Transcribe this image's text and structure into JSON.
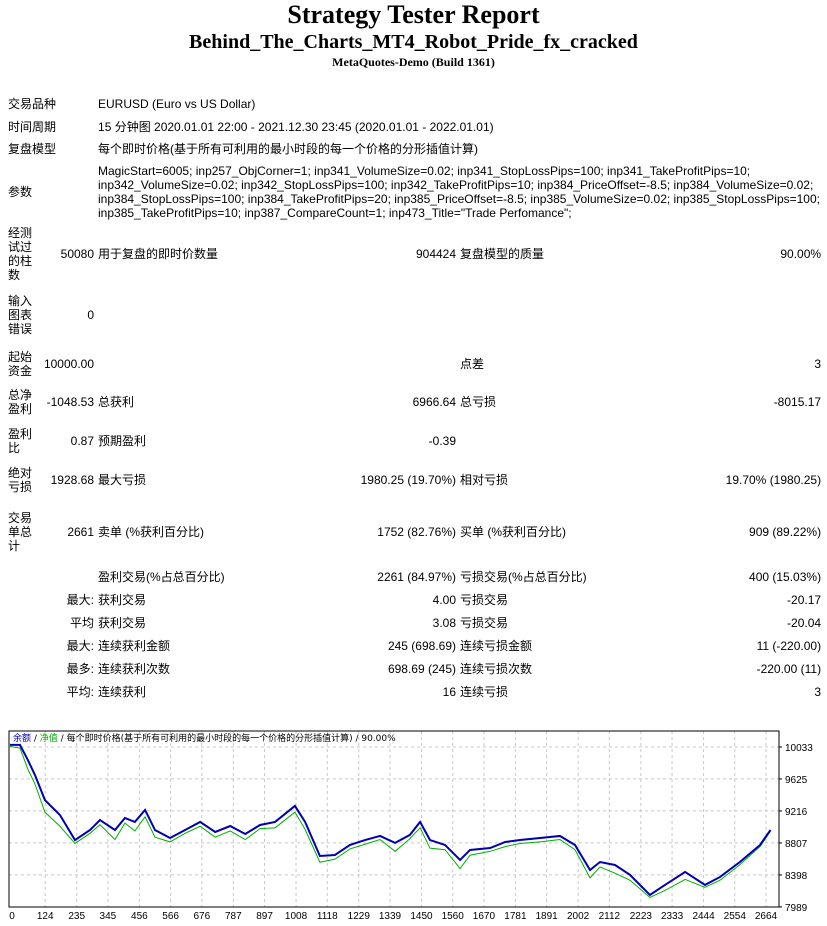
{
  "header": {
    "title": "Strategy Tester Report",
    "expert": "Behind_The_Charts_MT4_Robot_Pride_fx_cracked",
    "server": "MetaQuotes-Demo (Build 1361)"
  },
  "info": {
    "symbol_label": "交易品种",
    "symbol": "EURUSD (Euro vs US Dollar)",
    "period_label": "时间周期",
    "period": "15 分钟图 2020.01.01 22:00 - 2021.12.30 23:45 (2020.01.01 - 2022.01.01)",
    "model_label": "复盘模型",
    "model": "每个即时价格(基于所有可利用的最小时段的每一个价格的分形插值计算)",
    "params_label": "参数",
    "params": "MagicStart=6005; inp257_ObjCorner=1; inp341_VolumeSize=0.02; inp341_StopLossPips=100; inp341_TakeProfitPips=10; inp342_VolumeSize=0.02; inp342_StopLossPips=100; inp342_TakeProfitPips=10; inp384_PriceOffset=-8.5; inp384_VolumeSize=0.02; inp384_StopLossPips=100; inp384_TakeProfitPips=20; inp385_PriceOffset=-8.5; inp385_VolumeSize=0.02; inp385_StopLossPips=100; inp385_TakeProfitPips=10; inp387_CompareCount=1; inp473_Title=\"Trade Perfomance\";"
  },
  "stats": [
    {
      "h": 60,
      "cells": [
        "经测试过的柱数",
        "50080",
        "用于复盘的即时价数量",
        "904424",
        "复盘模型的质量",
        "90.00%"
      ]
    },
    {
      "h": 62,
      "cells": [
        "输入图表错误",
        "0",
        "",
        "",
        "",
        ""
      ]
    },
    {
      "h": 36,
      "cells": [
        "起始资金",
        "10000.00",
        "",
        "",
        "点差",
        "3"
      ]
    },
    {
      "h": 40,
      "cells": [
        "总净盈利",
        "-1048.53",
        "总获利",
        "6966.64",
        "总亏损",
        "-8015.17"
      ]
    },
    {
      "h": 38,
      "cells": [
        "盈利比",
        "0.87",
        "预期盈利",
        "-0.39",
        "",
        ""
      ]
    },
    {
      "h": 40,
      "cells": [
        "绝对亏损",
        "1928.68",
        "最大亏损",
        "1980.25 (19.70%)",
        "相对亏损",
        "19.70% (1980.25)"
      ]
    },
    {
      "h": 64,
      "cells": [
        "交易单总计",
        "2661",
        "卖单 (%获利百分比)",
        "1752 (82.76%)",
        "买单 (%获利百分比)",
        "909 (89.22%)"
      ]
    },
    {
      "h": 25,
      "cells": [
        "",
        "",
        "盈利交易(%占总百分比)",
        "2261 (84.97%)",
        "亏损交易(%占总百分比)",
        "400 (15.03%)"
      ]
    },
    {
      "h": 22,
      "cells": [
        "",
        "最大:",
        "获利交易",
        "4.00",
        "亏损交易",
        "-20.17"
      ]
    },
    {
      "h": 23,
      "cells": [
        "",
        "平均",
        "获利交易",
        "3.08",
        "亏损交易",
        "-20.04"
      ]
    },
    {
      "h": 23,
      "cells": [
        "",
        "最大:",
        "连续获利金额",
        "245 (698.69)",
        "连续亏损金额",
        "11 (-220.00)"
      ]
    },
    {
      "h": 23,
      "cells": [
        "",
        "最多:",
        "连续获利次数",
        "698.69 (245)",
        "连续亏损次数",
        "-220.00 (11)"
      ]
    },
    {
      "h": 23,
      "cells": [
        "",
        "平均:",
        "连续获利",
        "16",
        "连续亏损",
        "3"
      ]
    }
  ],
  "chart_data": {
    "type": "line",
    "legend": {
      "balance": "余额",
      "sep1": " / ",
      "equity": "净值",
      "sep2": " / ",
      "rest": "每个即时价格(基于所有可利用的最小时段的每一个价格的分形插值计算) / 90.00%"
    },
    "x_ticks": [
      0,
      124,
      235,
      345,
      456,
      566,
      676,
      787,
      897,
      1008,
      1118,
      1229,
      1339,
      1450,
      1560,
      1670,
      1781,
      1891,
      2002,
      2112,
      2223,
      2333,
      2444,
      2554,
      2664
    ],
    "y_ticks": [
      10033,
      9625,
      9216,
      8807,
      8398,
      7989
    ],
    "xlim": [
      0,
      2680
    ],
    "ylim": [
      7989,
      10090
    ],
    "grid": true,
    "colors": {
      "balance": "#0000b0",
      "equity": "#00b000",
      "grid": "#c8c8c8"
    },
    "series": [
      {
        "name": "余额",
        "x": [
          0,
          35,
          63,
          88,
          123,
          176,
          229,
          282,
          317,
          370,
          405,
          440,
          476,
          511,
          564,
          617,
          670,
          723,
          776,
          829,
          881,
          934,
          1004,
          1040,
          1092,
          1145,
          1198,
          1251,
          1304,
          1357,
          1409,
          1445,
          1480,
          1533,
          1586,
          1621,
          1692,
          1745,
          1797,
          1868,
          1938,
          1991,
          2044,
          2079,
          2132,
          2185,
          2255,
          2308,
          2379,
          2449,
          2502,
          2572,
          2643,
          2680
        ],
        "y": [
          10060,
          10060,
          9866,
          9675,
          9355,
          9164,
          8844,
          8972,
          9100,
          8972,
          9126,
          9075,
          9228,
          8972,
          8870,
          8972,
          9075,
          8947,
          9023,
          8921,
          9036,
          9075,
          9280,
          9075,
          8640,
          8653,
          8781,
          8844,
          8896,
          8807,
          8909,
          9075,
          8844,
          8781,
          8589,
          8717,
          8742,
          8819,
          8844,
          8870,
          8896,
          8781,
          8461,
          8563,
          8525,
          8398,
          8142,
          8270,
          8436,
          8270,
          8372,
          8563,
          8781,
          8972
        ]
      },
      {
        "name": "净值",
        "x": [
          0,
          35,
          63,
          88,
          123,
          176,
          229,
          282,
          317,
          370,
          405,
          440,
          476,
          511,
          564,
          617,
          670,
          723,
          776,
          829,
          881,
          934,
          1004,
          1040,
          1092,
          1145,
          1198,
          1251,
          1304,
          1357,
          1409,
          1445,
          1480,
          1533,
          1586,
          1621,
          1692,
          1745,
          1797,
          1868,
          1938,
          1991,
          2044,
          2079,
          2132,
          2185,
          2255,
          2308,
          2379,
          2449,
          2502,
          2572,
          2643,
          2680
        ],
        "y": [
          10040,
          10020,
          9750,
          9560,
          9200,
          9020,
          8800,
          8930,
          9040,
          8850,
          9060,
          8960,
          9140,
          8880,
          8820,
          8930,
          9020,
          8880,
          8960,
          8850,
          8990,
          9000,
          9200,
          8980,
          8560,
          8600,
          8730,
          8790,
          8850,
          8700,
          8860,
          9000,
          8740,
          8720,
          8480,
          8650,
          8700,
          8760,
          8800,
          8820,
          8850,
          8720,
          8360,
          8500,
          8420,
          8330,
          8110,
          8200,
          8340,
          8240,
          8330,
          8530,
          8760,
          8960
        ]
      }
    ]
  }
}
